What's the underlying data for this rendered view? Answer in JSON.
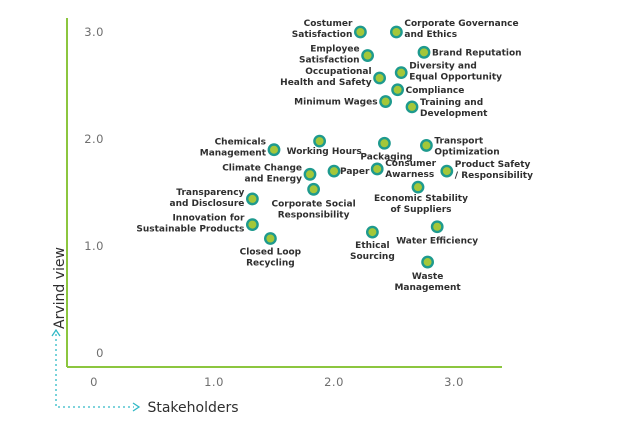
{
  "chart_data": {
    "type": "scatter",
    "xlabel": "Stakeholders",
    "ylabel": "Arvind view",
    "xlim": [
      -0.2,
      3.4
    ],
    "ylim": [
      -0.1,
      3.2
    ],
    "x_ticks": [
      "0",
      "1.0",
      "2.0",
      "3.0"
    ],
    "y_ticks": [
      "0",
      "1.0",
      "2.0",
      "3.0"
    ],
    "grid": false,
    "colors": {
      "axis": "#8cc63f",
      "point_fill": "#a4c739",
      "point_stroke": "#1e9a8e",
      "arrow": "#30b9c6"
    },
    "points": [
      {
        "label": "Costumer Satisfaction",
        "x": 2.22,
        "y": 3.0
      },
      {
        "label": "Corporate Governance and Ethics",
        "x": 2.52,
        "y": 3.0
      },
      {
        "label": "Employee Satisfaction",
        "x": 2.28,
        "y": 2.78
      },
      {
        "label": "Brand Reputation",
        "x": 2.75,
        "y": 2.81
      },
      {
        "label": "Occupational Health and Safety",
        "x": 2.38,
        "y": 2.57
      },
      {
        "label": "Diversity and Equal Opportunity",
        "x": 2.56,
        "y": 2.62
      },
      {
        "label": "Compliance",
        "x": 2.53,
        "y": 2.46
      },
      {
        "label": "Minimum Wages",
        "x": 2.43,
        "y": 2.35
      },
      {
        "label": "Training and Development",
        "x": 2.65,
        "y": 2.3
      },
      {
        "label": "Chemicals Management",
        "x": 1.5,
        "y": 1.9
      },
      {
        "label": "Working Hours",
        "x": 1.88,
        "y": 1.98
      },
      {
        "label": "Packaging",
        "x": 2.42,
        "y": 1.96
      },
      {
        "label": "Transport Optimization",
        "x": 2.77,
        "y": 1.94
      },
      {
        "label": "Climate Change and Energy",
        "x": 1.8,
        "y": 1.67
      },
      {
        "label": "Paper",
        "x": 2.0,
        "y": 1.7
      },
      {
        "label": "Consumer Awarness",
        "x": 2.36,
        "y": 1.72
      },
      {
        "label": "Product Safety / Responsibility",
        "x": 2.94,
        "y": 1.7
      },
      {
        "label": "Corporate Social Responsibility",
        "x": 1.83,
        "y": 1.53
      },
      {
        "label": "Economic Stability of Suppliers",
        "x": 2.7,
        "y": 1.55
      },
      {
        "label": "Transparency and Disclosure",
        "x": 1.32,
        "y": 1.44
      },
      {
        "label": "Innovation for Sustainable Products",
        "x": 1.32,
        "y": 1.2
      },
      {
        "label": "Closed Loop Recycling",
        "x": 1.47,
        "y": 1.07
      },
      {
        "label": "Ethical Sourcing",
        "x": 2.32,
        "y": 1.13
      },
      {
        "label": "Water Efficiency",
        "x": 2.86,
        "y": 1.18
      },
      {
        "label": "Waste Management",
        "x": 2.78,
        "y": 0.85
      }
    ]
  }
}
